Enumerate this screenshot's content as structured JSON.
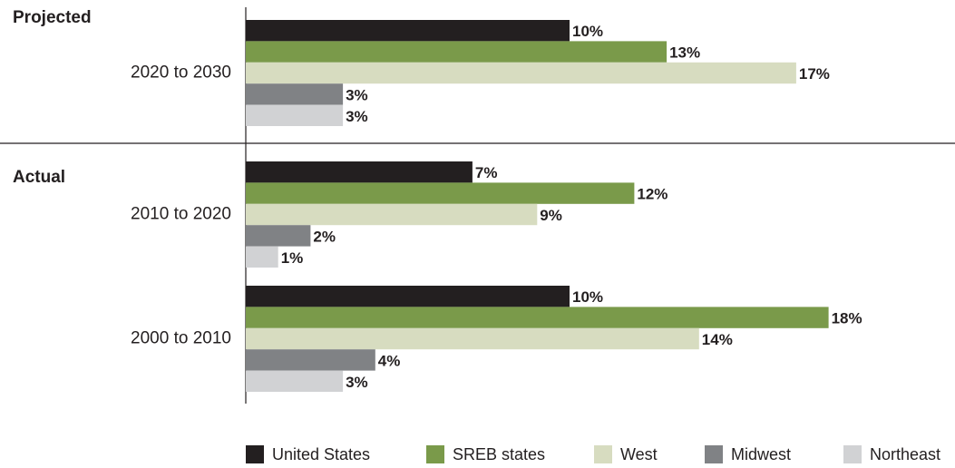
{
  "chart_data": {
    "type": "bar",
    "orientation": "horizontal",
    "group_labels": [
      "Projected",
      "Actual"
    ],
    "categories": [
      "2020 to 2030",
      "2010 to 2020",
      "2000 to 2010"
    ],
    "series": [
      {
        "name": "United States",
        "color": "#231f20",
        "values": [
          10,
          7,
          10
        ],
        "value_labels": [
          "10%",
          "7%",
          "10%"
        ]
      },
      {
        "name": "SREB states",
        "color": "#7a9a4a",
        "values": [
          13,
          12,
          18
        ],
        "value_labels": [
          "13%",
          "12%",
          "18%"
        ]
      },
      {
        "name": "West",
        "color": "#d7dcc0",
        "values": [
          17,
          9,
          14
        ],
        "value_labels": [
          "17%",
          "9%",
          "14%"
        ]
      },
      {
        "name": "Midwest",
        "color": "#808285",
        "values": [
          3,
          2,
          4
        ],
        "value_labels": [
          "3%",
          "2%",
          "4%"
        ]
      },
      {
        "name": "Northeast",
        "color": "#d1d2d4",
        "values": [
          3,
          1,
          3
        ],
        "value_labels": [
          "3%",
          "1%",
          "3%"
        ]
      }
    ],
    "legend": "bottom"
  }
}
